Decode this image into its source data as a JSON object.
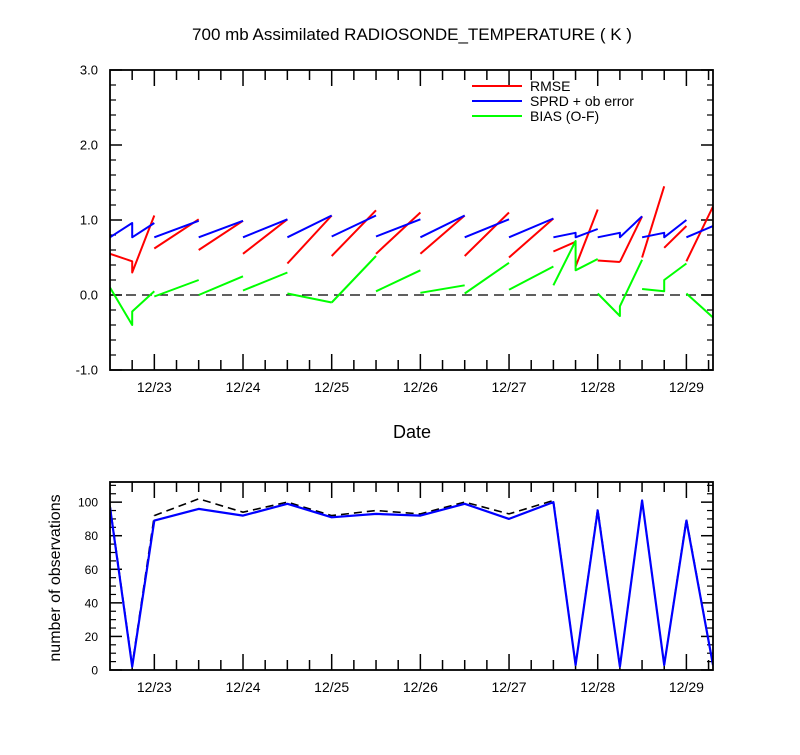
{
  "chart_data": [
    {
      "type": "line",
      "title": "700 mb Assimilated RADIOSONDE_TEMPERATURE ( K )",
      "xlabel": "Date",
      "ylabel": "",
      "xlim": [
        0,
        6.8
      ],
      "ylim": [
        -1.0,
        3.0
      ],
      "yticks": [
        -1.0,
        0.0,
        1.0,
        2.0,
        3.0
      ],
      "ytick_labels": [
        "-1.0",
        "0.0",
        "1.0",
        "2.0",
        "3.0"
      ],
      "xticks": [
        0.5,
        1.5,
        2.5,
        3.5,
        4.5,
        5.5,
        6.5
      ],
      "xtick_labels": [
        "12/23",
        "12/24",
        "12/25",
        "12/26",
        "12/27",
        "12/28",
        "12/29"
      ],
      "legend_position": "top-right",
      "zero_line": true,
      "series": [
        {
          "name": "RMSE",
          "color": "#ff0000",
          "segments": [
            [
              [
                0,
                0.55
              ],
              [
                0.25,
                0.45
              ],
              [
                0.25,
                0.3
              ],
              [
                0.5,
                1.06
              ]
            ],
            [
              [
                0.5,
                0.62
              ],
              [
                1.0,
                1.01
              ]
            ],
            [
              [
                1.0,
                0.6
              ],
              [
                1.5,
                0.99
              ]
            ],
            [
              [
                1.5,
                0.55
              ],
              [
                2.0,
                1.01
              ]
            ],
            [
              [
                2.0,
                0.42
              ],
              [
                2.5,
                1.06
              ]
            ],
            [
              [
                2.5,
                0.52
              ],
              [
                3.0,
                1.13
              ]
            ],
            [
              [
                3.0,
                0.55
              ],
              [
                3.5,
                1.1
              ]
            ],
            [
              [
                3.5,
                0.55
              ],
              [
                4.0,
                1.06
              ]
            ],
            [
              [
                4.0,
                0.52
              ],
              [
                4.5,
                1.1
              ]
            ],
            [
              [
                4.5,
                0.5
              ],
              [
                5.0,
                1.02
              ]
            ],
            [
              [
                5.0,
                0.58
              ],
              [
                5.25,
                0.71
              ]
            ],
            [
              [
                5.25,
                0.38
              ],
              [
                5.5,
                1.14
              ]
            ],
            [
              [
                5.5,
                0.46
              ],
              [
                5.75,
                0.44
              ]
            ],
            [
              [
                5.75,
                0.44
              ],
              [
                6.0,
                1.05
              ]
            ],
            [
              [
                6.0,
                0.5
              ],
              [
                6.25,
                1.45
              ]
            ],
            [
              [
                6.25,
                0.63
              ],
              [
                6.5,
                0.92
              ]
            ],
            [
              [
                6.5,
                0.45
              ],
              [
                6.8,
                1.18
              ]
            ]
          ]
        },
        {
          "name": "SPRD + ob error",
          "color": "#0000ff",
          "segments": [
            [
              [
                0,
                0.77
              ],
              [
                0.25,
                0.96
              ],
              [
                0.25,
                0.77
              ],
              [
                0.5,
                0.96
              ]
            ],
            [
              [
                0.5,
                0.77
              ],
              [
                1.0,
                0.99
              ]
            ],
            [
              [
                1.0,
                0.77
              ],
              [
                1.5,
                0.99
              ]
            ],
            [
              [
                1.5,
                0.77
              ],
              [
                2.0,
                1.01
              ]
            ],
            [
              [
                2.0,
                0.77
              ],
              [
                2.5,
                1.06
              ]
            ],
            [
              [
                2.5,
                0.78
              ],
              [
                3.0,
                1.06
              ]
            ],
            [
              [
                3.0,
                0.78
              ],
              [
                3.5,
                1.01
              ]
            ],
            [
              [
                3.5,
                0.77
              ],
              [
                4.0,
                1.06
              ]
            ],
            [
              [
                4.0,
                0.77
              ],
              [
                4.5,
                1.01
              ]
            ],
            [
              [
                4.5,
                0.77
              ],
              [
                5.0,
                1.02
              ]
            ],
            [
              [
                5.0,
                0.77
              ],
              [
                5.25,
                0.83
              ],
              [
                5.25,
                0.77
              ],
              [
                5.5,
                0.88
              ]
            ],
            [
              [
                5.5,
                0.77
              ],
              [
                5.75,
                0.83
              ],
              [
                5.75,
                0.77
              ],
              [
                6.0,
                1.05
              ]
            ],
            [
              [
                6.0,
                0.77
              ],
              [
                6.25,
                0.83
              ],
              [
                6.25,
                0.77
              ],
              [
                6.5,
                1.0
              ]
            ],
            [
              [
                6.5,
                0.77
              ],
              [
                6.8,
                0.92
              ]
            ]
          ]
        },
        {
          "name": "BIAS (O-F)",
          "color": "#00ff00",
          "segments": [
            [
              [
                0,
                0.1
              ],
              [
                0.25,
                -0.4
              ],
              [
                0.25,
                -0.22
              ],
              [
                0.5,
                0.05
              ]
            ],
            [
              [
                0.5,
                -0.02
              ],
              [
                1.0,
                0.2
              ]
            ],
            [
              [
                1.0,
                0.0
              ],
              [
                1.5,
                0.25
              ]
            ],
            [
              [
                1.5,
                0.06
              ],
              [
                2.0,
                0.3
              ]
            ],
            [
              [
                2.0,
                0.02
              ],
              [
                2.5,
                -0.1
              ]
            ],
            [
              [
                2.5,
                -0.1
              ],
              [
                3.0,
                0.52
              ]
            ],
            [
              [
                3.0,
                0.05
              ],
              [
                3.5,
                0.33
              ]
            ],
            [
              [
                3.5,
                0.03
              ],
              [
                4.0,
                0.13
              ]
            ],
            [
              [
                4.0,
                0.02
              ],
              [
                4.5,
                0.43
              ]
            ],
            [
              [
                4.5,
                0.07
              ],
              [
                5.0,
                0.38
              ]
            ],
            [
              [
                5.0,
                0.13
              ],
              [
                5.25,
                0.72
              ],
              [
                5.25,
                0.33
              ],
              [
                5.5,
                0.48
              ]
            ],
            [
              [
                5.5,
                0.02
              ],
              [
                5.75,
                -0.28
              ],
              [
                5.75,
                -0.15
              ],
              [
                6.0,
                0.47
              ]
            ],
            [
              [
                6.0,
                0.08
              ],
              [
                6.25,
                0.05
              ],
              [
                6.25,
                0.2
              ],
              [
                6.5,
                0.42
              ]
            ],
            [
              [
                6.5,
                0.02
              ],
              [
                6.8,
                -0.3
              ]
            ]
          ]
        }
      ]
    },
    {
      "type": "line",
      "title": "",
      "xlabel": "",
      "ylabel": "number of observations",
      "xlim": [
        0,
        6.8
      ],
      "ylim": [
        0,
        112
      ],
      "yticks": [
        0,
        20,
        40,
        60,
        80,
        100
      ],
      "ytick_labels": [
        "0",
        "20",
        "40",
        "60",
        "80",
        "100"
      ],
      "xticks": [
        0.5,
        1.5,
        2.5,
        3.5,
        4.5,
        5.5,
        6.5
      ],
      "xtick_labels": [
        "12/23",
        "12/24",
        "12/25",
        "12/26",
        "12/27",
        "12/28",
        "12/29"
      ],
      "x": [
        0,
        0.25,
        0.5,
        1.0,
        1.5,
        2.0,
        2.5,
        3.0,
        3.5,
        4.0,
        4.5,
        5.0,
        5.25,
        5.5,
        5.75,
        6.0,
        6.25,
        6.5,
        6.8
      ],
      "series": [
        {
          "name": "",
          "color": "#000000",
          "dashed": true,
          "values": [
            98,
            3,
            92,
            102,
            94,
            100,
            92,
            95,
            93,
            100,
            93,
            101,
            3,
            96,
            2,
            101,
            3,
            90,
            3
          ]
        },
        {
          "name": "",
          "color": "#0000ff",
          "dashed": false,
          "values": [
            97,
            2,
            89,
            96,
            92,
            99,
            91,
            93,
            92,
            99,
            90,
            100,
            3,
            95,
            2,
            101,
            3,
            89,
            3
          ]
        }
      ]
    }
  ]
}
